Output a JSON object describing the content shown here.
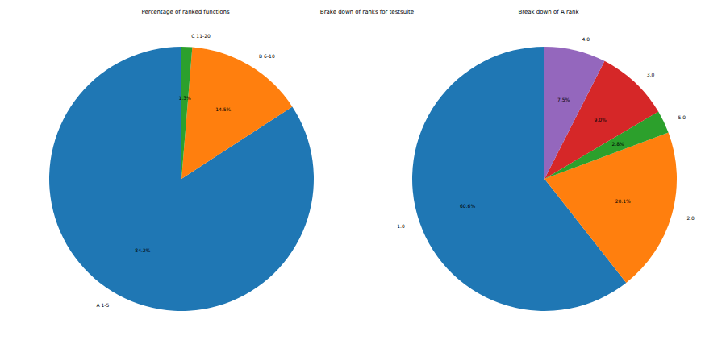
{
  "title": "Brake down of ranks for testsuite",
  "chart_data": [
    {
      "type": "pie",
      "title": "Percentage of ranked functions",
      "categories": [
        "A 1-5",
        "B 6-10",
        "C 11-20"
      ],
      "values": [
        84.2,
        14.5,
        1.3
      ],
      "value_labels": [
        "84.2%",
        "14.5%",
        "1.3%"
      ],
      "colors": [
        "#1f77b4",
        "#ff7f0e",
        "#2ca02c"
      ],
      "data_labels": true
    },
    {
      "type": "pie",
      "title": "Break down of A rank",
      "categories": [
        "1.0",
        "2.0",
        "5.0",
        "3.0",
        "4.0"
      ],
      "values": [
        60.6,
        20.1,
        2.8,
        9.0,
        7.5
      ],
      "value_labels": [
        "60.6%",
        "20.1%",
        "2.8%",
        "9.0%",
        "7.5%"
      ],
      "colors": [
        "#1f77b4",
        "#ff7f0e",
        "#2ca02c",
        "#d62728",
        "#9467bd"
      ],
      "data_labels": true
    }
  ]
}
